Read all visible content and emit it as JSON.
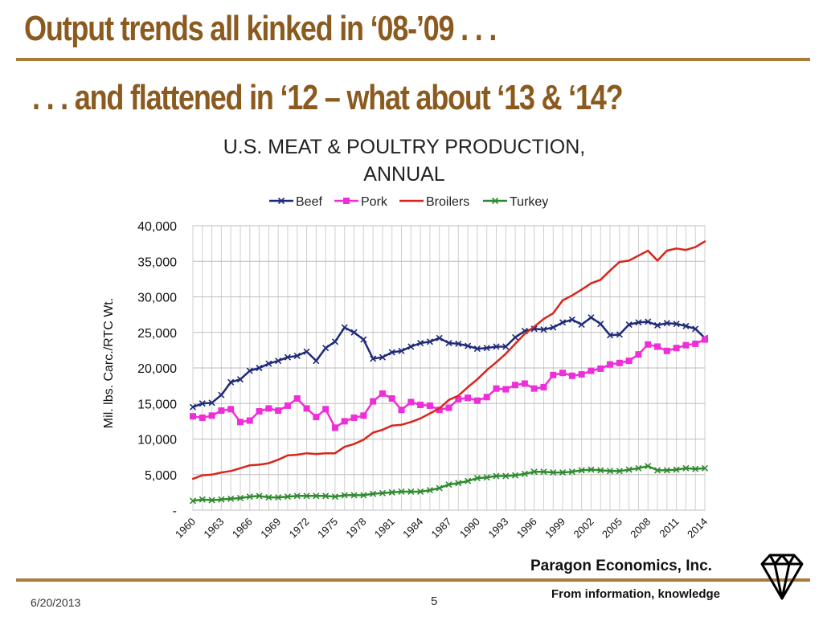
{
  "slide": {
    "title_line1": "Output trends all kinked in ‘08-’09 . . .",
    "title_line2": ". . . and flattened in ‘12 – what about ‘13 & ‘14?",
    "footer_company": "Paragon Economics, Inc.",
    "footer_tagline": "From information, knowledge",
    "footer_date": "6/20/2013",
    "page_number": "5",
    "title_color": "#8b5a1e",
    "rule_color": "#a87a3c",
    "logo_icon": "diamond-icon"
  },
  "chart_data": {
    "type": "line",
    "title": "U.S. MEAT & POULTRY PRODUCTION, ANNUAL",
    "title_lines": [
      "U.S. MEAT & POULTRY PRODUCTION,",
      "ANNUAL"
    ],
    "ylabel": "Mil. lbs. Carc./RTC Wt.",
    "xlabel": "",
    "ylim": [
      0,
      40000
    ],
    "y_ticks": [
      0,
      5000,
      10000,
      15000,
      20000,
      25000,
      30000,
      35000,
      40000
    ],
    "y_tick_labels": [
      "-",
      "5,000",
      "10,000",
      "15,000",
      "20,000",
      "25,000",
      "30,000",
      "35,000",
      "40,000"
    ],
    "x_tick_labels": [
      "1960",
      "1963",
      "1966",
      "1969",
      "1972",
      "1975",
      "1978",
      "1981",
      "1984",
      "1987",
      "1990",
      "1993",
      "1996",
      "1999",
      "2002",
      "2005",
      "2008",
      "2011",
      "2014"
    ],
    "grid": true,
    "legend_position": "top",
    "x": [
      1960,
      1961,
      1962,
      1963,
      1964,
      1965,
      1966,
      1967,
      1968,
      1969,
      1970,
      1971,
      1972,
      1973,
      1974,
      1975,
      1976,
      1977,
      1978,
      1979,
      1980,
      1981,
      1982,
      1983,
      1984,
      1985,
      1986,
      1987,
      1988,
      1989,
      1990,
      1991,
      1992,
      1993,
      1994,
      1995,
      1996,
      1997,
      1998,
      1999,
      2000,
      2001,
      2002,
      2003,
      2004,
      2005,
      2006,
      2007,
      2008,
      2009,
      2010,
      2011,
      2012,
      2013,
      2014
    ],
    "series": [
      {
        "name": "Beef",
        "color": "#1f2a78",
        "marker": "x",
        "values": [
          14500,
          15000,
          15100,
          16200,
          18000,
          18400,
          19600,
          20000,
          20600,
          21000,
          21500,
          21700,
          22300,
          21000,
          22800,
          23700,
          25700,
          25000,
          24000,
          21300,
          21500,
          22200,
          22400,
          23000,
          23500,
          23700,
          24200,
          23500,
          23400,
          23100,
          22700,
          22800,
          23000,
          23000,
          24300,
          25200,
          25500,
          25400,
          25700,
          26400,
          26800,
          26100,
          27100,
          26200,
          24600,
          24700,
          26100,
          26400,
          26500,
          26000,
          26300,
          26200,
          25900,
          25500,
          24200
        ]
      },
      {
        "name": "Pork",
        "color": "#ee2ed8",
        "marker": "square",
        "values": [
          13200,
          13000,
          13300,
          14000,
          14200,
          12400,
          12600,
          13900,
          14300,
          14000,
          14700,
          15700,
          14300,
          13100,
          14200,
          11600,
          12500,
          13000,
          13300,
          15300,
          16400,
          15700,
          14100,
          15200,
          14800,
          14700,
          14100,
          14400,
          15600,
          15800,
          15400,
          15900,
          17100,
          17000,
          17600,
          17800,
          17100,
          17300,
          19000,
          19300,
          18900,
          19100,
          19600,
          19900,
          20500,
          20700,
          21000,
          21900,
          23300,
          23000,
          22400,
          22800,
          23200,
          23400,
          24000
        ]
      },
      {
        "name": "Broilers",
        "color": "#d8261c",
        "marker": "line",
        "values": [
          4400,
          4900,
          5000,
          5300,
          5500,
          5900,
          6300,
          6400,
          6600,
          7100,
          7700,
          7800,
          8000,
          7900,
          8000,
          8000,
          8900,
          9300,
          9900,
          10900,
          11300,
          11900,
          12000,
          12400,
          12900,
          13600,
          14300,
          15500,
          16100,
          17300,
          18400,
          19700,
          20800,
          22000,
          23400,
          24800,
          25800,
          26900,
          27700,
          29500,
          30200,
          31000,
          31900,
          32400,
          33700,
          34900,
          35100,
          35800,
          36500,
          35100,
          36500,
          36800,
          36600,
          37000,
          37800
        ]
      },
      {
        "name": "Turkey",
        "color": "#2e8a2e",
        "marker": "x",
        "values": [
          1300,
          1500,
          1400,
          1500,
          1600,
          1700,
          1900,
          2000,
          1800,
          1800,
          1900,
          2000,
          2000,
          2000,
          2000,
          1900,
          2100,
          2100,
          2100,
          2300,
          2400,
          2500,
          2600,
          2600,
          2600,
          2800,
          3100,
          3600,
          3800,
          4100,
          4500,
          4600,
          4800,
          4800,
          4900,
          5100,
          5400,
          5400,
          5300,
          5300,
          5400,
          5600,
          5700,
          5600,
          5500,
          5500,
          5700,
          5900,
          6200,
          5600,
          5600,
          5700,
          5900,
          5800,
          5900
        ]
      }
    ]
  }
}
